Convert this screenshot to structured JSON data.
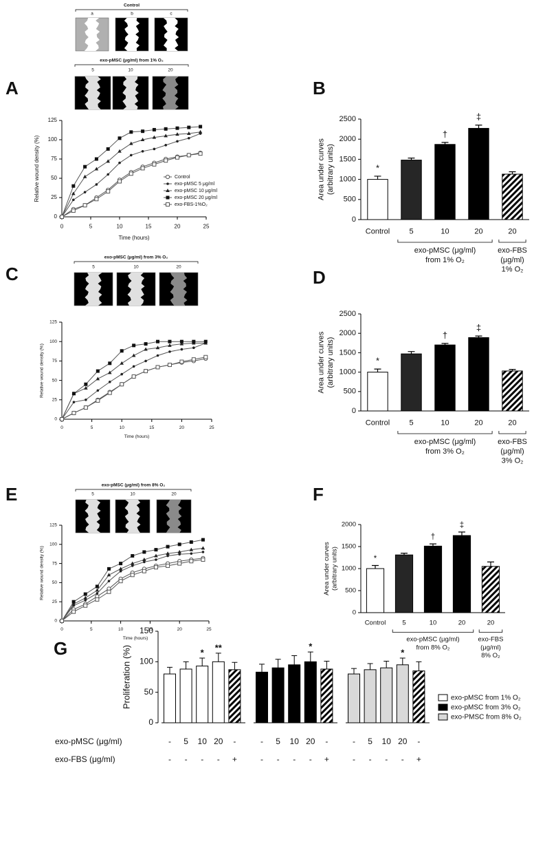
{
  "chart_data": [
    {
      "type": "line",
      "panel": "A",
      "control_strip": {
        "title": "Control",
        "labels": [
          "a",
          "b",
          "c"
        ]
      },
      "strip": {
        "title": "exo-pMSC (μg/ml) from 1% O₂",
        "labels": [
          "5",
          "10",
          "20"
        ]
      },
      "x_label": "Time (hours)",
      "y_label": "Relative wound density (%)",
      "x": [
        0,
        2,
        4,
        6,
        8,
        10,
        12,
        14,
        16,
        18,
        20,
        22,
        24
      ],
      "xlim": [
        0,
        25
      ],
      "xticks": [
        0,
        5,
        10,
        15,
        20,
        25
      ],
      "ylim": [
        0,
        125
      ],
      "yticks": [
        0,
        25,
        50,
        75,
        100,
        125
      ],
      "legend": "center right",
      "series": [
        {
          "name": "Control",
          "marker": "circle-open",
          "color": "#555555",
          "values": [
            0,
            10,
            15,
            25,
            35,
            48,
            58,
            65,
            70,
            75,
            78,
            80,
            83
          ]
        },
        {
          "name": "exo-pMSC 5 μg/ml",
          "marker": "dot",
          "color": "#555555",
          "values": [
            0,
            22,
            32,
            42,
            55,
            70,
            80,
            85,
            88,
            93,
            98,
            102,
            108
          ]
        },
        {
          "name": "exo-pMSC 10 μg/ml",
          "marker": "triangle",
          "color": "#555555",
          "values": [
            0,
            30,
            52,
            62,
            72,
            85,
            95,
            100,
            103,
            105,
            107,
            108,
            110
          ]
        },
        {
          "name": "exo-pMSC 20 μg/ml",
          "marker": "square",
          "color": "#555555",
          "values": [
            0,
            40,
            65,
            75,
            88,
            102,
            110,
            111,
            113,
            114,
            115,
            116,
            117
          ]
        },
        {
          "name": "exo-FBS-1%O₂",
          "marker": "square-open",
          "color": "#555555",
          "values": [
            0,
            8,
            15,
            23,
            33,
            46,
            56,
            63,
            68,
            73,
            77,
            80,
            82
          ]
        }
      ]
    },
    {
      "type": "bar",
      "panel": "B",
      "y_label": [
        "Area under curves",
        "(arbitrary units)"
      ],
      "categories": [
        "Control",
        "5",
        "10",
        "20",
        "20"
      ],
      "values": [
        1000,
        1480,
        1870,
        2270,
        1130
      ],
      "errors": [
        80,
        50,
        50,
        80,
        60
      ],
      "annotations": [
        "*",
        null,
        "†",
        "‡",
        null
      ],
      "fills": [
        "#ffffff",
        "#262626",
        "#000000",
        "#000000",
        "hatch"
      ],
      "ylim": [
        0,
        2500
      ],
      "yticks": [
        0,
        500,
        1000,
        1500,
        2000,
        2500
      ],
      "pmsc_group_label": [
        "exo-pMSC (μg/ml)",
        "from 1% O₂"
      ],
      "fbs_group_label": [
        "exo-FBS",
        "(μg/ml)",
        "1% O₂"
      ]
    },
    {
      "type": "line",
      "panel": "C",
      "strip": {
        "title": "exo-pMSC (μg/ml) from 3% O₂",
        "labels": [
          "5",
          "10",
          "20"
        ]
      },
      "x_label": "Time (hours)",
      "y_label": "Relative wound density (%)",
      "x": [
        0,
        2,
        4,
        6,
        8,
        10,
        12,
        14,
        16,
        18,
        20,
        22,
        24
      ],
      "xlim": [
        0,
        25
      ],
      "xticks": [
        0,
        5,
        10,
        15,
        20,
        25
      ],
      "ylim": [
        0,
        125
      ],
      "yticks": [
        0,
        25,
        50,
        75,
        100,
        125
      ],
      "series": [
        {
          "marker": "circle-open",
          "color": "#555555",
          "values": [
            0,
            8,
            15,
            25,
            35,
            45,
            55,
            62,
            67,
            70,
            73,
            75,
            78
          ]
        },
        {
          "marker": "dot",
          "color": "#555555",
          "values": [
            0,
            22,
            25,
            37,
            48,
            58,
            68,
            75,
            82,
            87,
            90,
            92,
            98
          ]
        },
        {
          "marker": "triangle",
          "color": "#555555",
          "values": [
            0,
            33,
            40,
            52,
            60,
            72,
            82,
            90,
            92,
            95,
            97,
            98,
            98
          ]
        },
        {
          "marker": "square",
          "color": "#555555",
          "values": [
            0,
            33,
            45,
            62,
            72,
            88,
            95,
            97,
            100,
            100,
            100,
            100,
            100
          ]
        },
        {
          "marker": "square-open",
          "color": "#555555",
          "values": [
            0,
            8,
            15,
            24,
            34,
            45,
            55,
            62,
            67,
            70,
            74,
            77,
            80
          ]
        }
      ]
    },
    {
      "type": "bar",
      "panel": "D",
      "y_label": [
        "Area under curves",
        "(arbitrary units)"
      ],
      "categories": [
        "Control",
        "5",
        "10",
        "20",
        "20"
      ],
      "values": [
        1000,
        1470,
        1700,
        1890,
        1030
      ],
      "errors": [
        80,
        60,
        40,
        40,
        40
      ],
      "annotations": [
        "*",
        null,
        "†",
        "‡",
        null
      ],
      "fills": [
        "#ffffff",
        "#262626",
        "#000000",
        "#000000",
        "hatch"
      ],
      "ylim": [
        0,
        2500
      ],
      "yticks": [
        0,
        500,
        1000,
        1500,
        2000,
        2500
      ],
      "pmsc_group_label": [
        "exo-pMSC (μg/ml)",
        "from 3% O₂"
      ],
      "fbs_group_label": [
        "exo-FBS",
        "(μg/ml)",
        "3% O₂"
      ]
    },
    {
      "type": "line",
      "panel": "E",
      "strip": {
        "title": "exo-pMSC (μg/ml) from 8% O₂",
        "labels": [
          "5",
          "10",
          "20"
        ]
      },
      "x_label": "Time (hours)",
      "y_label": "Relative wound density (%)",
      "x": [
        0,
        2,
        4,
        6,
        8,
        10,
        12,
        14,
        16,
        18,
        20,
        22,
        24
      ],
      "xlim": [
        0,
        25
      ],
      "xticks": [
        0,
        5,
        10,
        15,
        20,
        25
      ],
      "ylim": [
        0,
        125
      ],
      "yticks": [
        0,
        25,
        50,
        75,
        100,
        125
      ],
      "series": [
        {
          "marker": "circle-open",
          "color": "#555555",
          "values": [
            0,
            15,
            22,
            32,
            42,
            55,
            63,
            68,
            72,
            75,
            78,
            80,
            82
          ]
        },
        {
          "marker": "dot",
          "color": "#555555",
          "values": [
            0,
            20,
            27,
            36,
            52,
            65,
            72,
            77,
            80,
            85,
            87,
            88,
            90
          ]
        },
        {
          "marker": "triangle",
          "color": "#555555",
          "values": [
            0,
            22,
            30,
            40,
            60,
            68,
            75,
            80,
            85,
            88,
            90,
            93,
            95
          ]
        },
        {
          "marker": "square",
          "color": "#555555",
          "values": [
            0,
            25,
            35,
            45,
            68,
            75,
            85,
            90,
            93,
            97,
            100,
            103,
            106
          ]
        },
        {
          "marker": "square-open",
          "color": "#555555",
          "values": [
            0,
            12,
            20,
            28,
            38,
            52,
            60,
            65,
            70,
            72,
            75,
            78,
            80
          ]
        }
      ]
    },
    {
      "type": "bar",
      "panel": "F",
      "y_label": [
        "Area under curves",
        "(arbitrary units)"
      ],
      "categories": [
        "Control",
        "5",
        "10",
        "20",
        "20"
      ],
      "values": [
        1000,
        1310,
        1510,
        1750,
        1050
      ],
      "errors": [
        70,
        40,
        50,
        80,
        100
      ],
      "annotations": [
        "*",
        null,
        "†",
        "‡",
        null
      ],
      "fills": [
        "#ffffff",
        "#262626",
        "#000000",
        "#000000",
        "hatch"
      ],
      "ylim": [
        0,
        2000
      ],
      "yticks": [
        0,
        500,
        1000,
        1500,
        2000
      ],
      "pmsc_group_label": [
        "exo-pMSC (μg/ml)",
        "from 8% O₂"
      ],
      "fbs_group_label": [
        "exo-FBS",
        "(μg/ml)",
        "8% O₂"
      ]
    },
    {
      "type": "grouped_bar",
      "panel": "G",
      "y_label": "Proliferation  (%)",
      "ylim": [
        0,
        150
      ],
      "yticks": [
        0,
        50,
        100,
        150
      ],
      "hatched": [
        false,
        false,
        false,
        false,
        true
      ],
      "row_labels": [
        {
          "title": "exo-pMSC (μg/ml)",
          "labels": [
            "-",
            "5",
            "10",
            "20",
            "-"
          ]
        },
        {
          "title": "exo-FBS (μg/ml)",
          "labels": [
            "-",
            "-",
            "-",
            "-",
            "+"
          ]
        }
      ],
      "legend": "right",
      "series": [
        {
          "name": "exo-pMSC from 1% O₂",
          "color": "#ffffff",
          "values": [
            80,
            88,
            93,
            100,
            87
          ],
          "errors": [
            11,
            12,
            13,
            14,
            12
          ],
          "annotations": [
            null,
            null,
            "*",
            "**",
            null
          ]
        },
        {
          "name": "exo-pMSC from 3% O₂",
          "color": "#000000",
          "values": [
            83,
            90,
            95,
            100,
            88
          ],
          "errors": [
            13,
            14,
            15,
            16,
            13
          ],
          "annotations": [
            null,
            null,
            null,
            "*",
            null
          ]
        },
        {
          "name": "exo-PMSC from 8% O₂",
          "color": "#d9d9d9",
          "values": [
            80,
            87,
            90,
            95,
            85
          ],
          "errors": [
            9,
            10,
            11,
            11,
            15
          ],
          "annotations": [
            null,
            null,
            null,
            "*",
            null
          ]
        }
      ]
    }
  ]
}
